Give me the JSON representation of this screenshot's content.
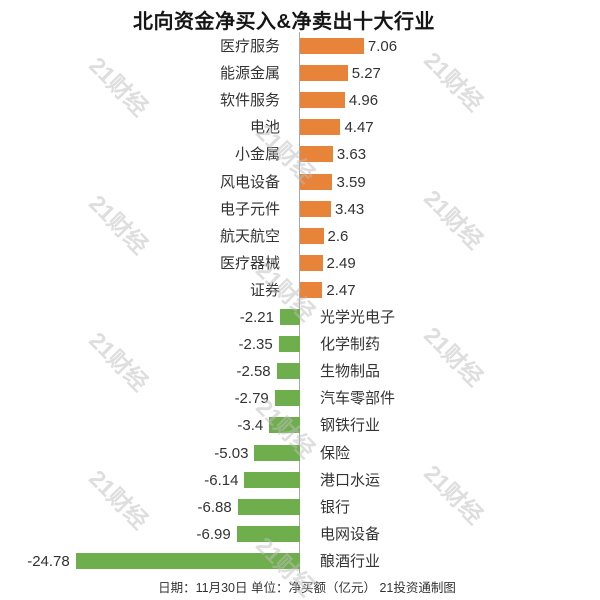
{
  "title": "北向资金净买入&净卖出十大行业",
  "footer": "日期：11月30日 单位：净买额（亿元） 21投资通制图",
  "watermark": {
    "text": "21财经"
  },
  "colors": {
    "positive_bar": "#E8833A",
    "negative_bar": "#6FAE4C",
    "axis": "#A8A8A8",
    "text": "#333333",
    "title": "#151515",
    "watermark": "#BEBEBE"
  },
  "chart_data": {
    "type": "bar",
    "orientation": "horizontal",
    "title": "北向资金净买入&净卖出十大行业",
    "unit": "净买额（亿元）",
    "date": "11月30日",
    "source": "21投资通制图",
    "legend": "none",
    "grid": false,
    "xlim": [
      -25,
      8
    ],
    "categories": [
      "医疗服务",
      "能源金属",
      "软件服务",
      "电池",
      "小金属",
      "风电设备",
      "电子元件",
      "航天航空",
      "医疗器械",
      "证券",
      "光学光电子",
      "化学制药",
      "生物制品",
      "汽车零部件",
      "钢铁行业",
      "保险",
      "港口水运",
      "银行",
      "电网设备",
      "酿酒行业"
    ],
    "values": [
      7.06,
      5.27,
      4.96,
      4.47,
      3.63,
      3.59,
      3.43,
      2.6,
      2.49,
      2.47,
      -2.21,
      -2.35,
      -2.58,
      -2.79,
      -3.4,
      -5.03,
      -6.14,
      -6.88,
      -6.99,
      -24.78
    ],
    "value_labels": [
      "7.06",
      "5.27",
      "4.96",
      "4.47",
      "3.63",
      "3.59",
      "3.43",
      "2.6",
      "2.49",
      "2.47",
      "-2.21",
      "-2.35",
      "-2.58",
      "-2.79",
      "-3.4",
      "-5.03",
      "-6.14",
      "-6.88",
      "-6.99",
      "-24.78"
    ]
  }
}
